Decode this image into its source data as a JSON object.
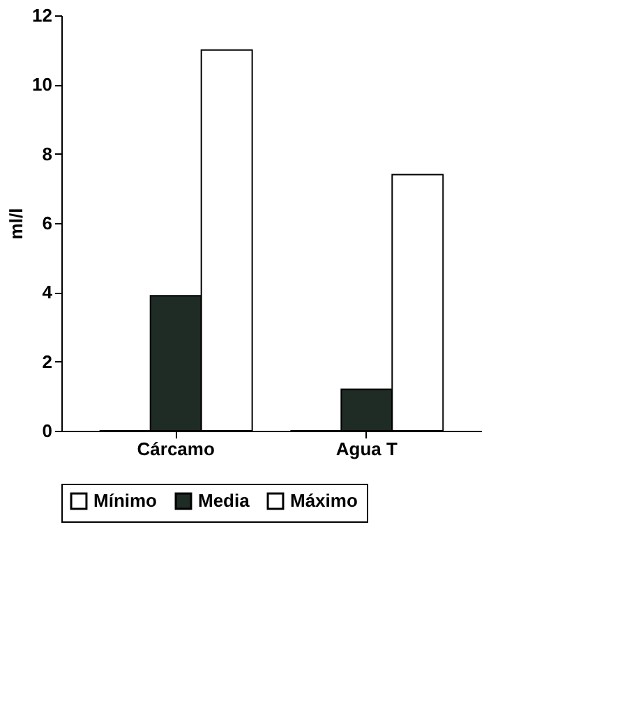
{
  "chart_data": {
    "type": "bar",
    "ylabel": "ml/l",
    "categories": [
      "Cárcamo",
      "Agua T"
    ],
    "series": [
      {
        "name": "Mínimo",
        "color": "#ffffff",
        "values": [
          0,
          0
        ]
      },
      {
        "name": "Media",
        "color": "#1f2b25",
        "values": [
          3.9,
          1.2
        ]
      },
      {
        "name": "Máximo",
        "color": "#ffffff",
        "values": [
          11,
          7.4
        ]
      }
    ],
    "ylim": [
      0,
      12
    ],
    "yticks": [
      0,
      2,
      4,
      6,
      8,
      10,
      12
    ],
    "grid": false,
    "legend": "bottom"
  }
}
